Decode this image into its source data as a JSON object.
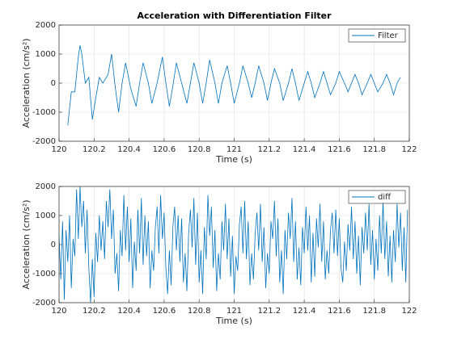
{
  "chart_data": [
    {
      "type": "line",
      "title": "Acceleration with Differentiation Filter",
      "xlabel": "Time (s)",
      "ylabel": "Acceleration (cm/s²)",
      "x": [
        120.05,
        120.07,
        120.09,
        120.11,
        120.12,
        120.13,
        120.15,
        120.17,
        120.19,
        120.21,
        120.23,
        120.25,
        120.28,
        120.3,
        120.32,
        120.34,
        120.36,
        120.38,
        120.41,
        120.44,
        120.46,
        120.48,
        120.51,
        120.53,
        120.56,
        120.59,
        120.61,
        120.63,
        120.65,
        120.67,
        120.7,
        120.73,
        120.75,
        120.77,
        120.8,
        120.82,
        120.84,
        120.86,
        120.89,
        120.91,
        120.93,
        120.96,
        120.98,
        121.0,
        121.03,
        121.05,
        121.08,
        121.1,
        121.12,
        121.14,
        121.17,
        121.19,
        121.21,
        121.23,
        121.26,
        121.28,
        121.31,
        121.33,
        121.35,
        121.37,
        121.4,
        121.42,
        121.44,
        121.46,
        121.49,
        121.51,
        121.53,
        121.55,
        121.58,
        121.6,
        121.63,
        121.65,
        121.67,
        121.69,
        121.71,
        121.73,
        121.76,
        121.78,
        121.8,
        121.82,
        121.85,
        121.87,
        121.89,
        121.91,
        121.93,
        121.95
      ],
      "series": [
        {
          "name": "Filter",
          "color": "#0072BD",
          "values": [
            -1450,
            -300,
            -300,
            900,
            1300,
            1000,
            0,
            200,
            -1250,
            -500,
            200,
            0,
            300,
            1000,
            -100,
            -1000,
            0,
            700,
            -200,
            -800,
            0,
            700,
            0,
            -700,
            0,
            900,
            0,
            -800,
            -100,
            700,
            0,
            -700,
            0,
            700,
            0,
            -700,
            0,
            800,
            0,
            -700,
            0,
            600,
            0,
            -700,
            0,
            600,
            0,
            -500,
            0,
            600,
            0,
            -600,
            0,
            500,
            0,
            -600,
            0,
            500,
            0,
            -600,
            0,
            400,
            0,
            -500,
            0,
            400,
            0,
            -400,
            0,
            400,
            0,
            -300,
            0,
            300,
            0,
            -400,
            0,
            300,
            0,
            -300,
            0,
            300,
            0,
            -400,
            0,
            200
          ]
        }
      ],
      "xlim": [
        120,
        122
      ],
      "xticks": [
        120,
        120.2,
        120.4,
        120.6,
        120.8,
        121,
        121.2,
        121.4,
        121.6,
        121.8,
        122
      ],
      "ylim": [
        -2000,
        2000
      ],
      "yticks": [
        -2000,
        -1000,
        0,
        1000,
        2000
      ],
      "grid": true,
      "legend": "top-right"
    },
    {
      "type": "line",
      "xlabel": "Time (s)",
      "ylabel": "Acceleration (cm/s²)",
      "x": [
        120.0,
        120.01,
        120.02,
        120.03,
        120.04,
        120.05,
        120.06,
        120.07,
        120.08,
        120.09,
        120.1,
        120.11,
        120.12,
        120.13,
        120.14,
        120.15,
        120.16,
        120.17,
        120.18,
        120.19,
        120.2,
        120.21,
        120.22,
        120.23,
        120.24,
        120.25,
        120.26,
        120.27,
        120.28,
        120.29,
        120.3,
        120.31,
        120.32,
        120.33,
        120.34,
        120.35,
        120.36,
        120.37,
        120.38,
        120.39,
        120.4,
        120.41,
        120.42,
        120.43,
        120.44,
        120.45,
        120.46,
        120.47,
        120.48,
        120.49,
        120.5,
        120.51,
        120.52,
        120.53,
        120.54,
        120.55,
        120.56,
        120.57,
        120.58,
        120.59,
        120.6,
        120.61,
        120.62,
        120.63,
        120.64,
        120.65,
        120.66,
        120.67,
        120.68,
        120.69,
        120.7,
        120.71,
        120.72,
        120.73,
        120.74,
        120.75,
        120.76,
        120.77,
        120.78,
        120.79,
        120.8,
        120.81,
        120.82,
        120.83,
        120.84,
        120.85,
        120.86,
        120.87,
        120.88,
        120.89,
        120.9,
        120.91,
        120.92,
        120.93,
        120.94,
        120.95,
        120.96,
        120.97,
        120.98,
        120.99,
        121.0,
        121.01,
        121.02,
        121.03,
        121.04,
        121.05,
        121.06,
        121.07,
        121.08,
        121.09,
        121.1,
        121.11,
        121.12,
        121.13,
        121.14,
        121.15,
        121.16,
        121.17,
        121.18,
        121.19,
        121.2,
        121.21,
        121.22,
        121.23,
        121.24,
        121.25,
        121.26,
        121.27,
        121.28,
        121.29,
        121.3,
        121.31,
        121.32,
        121.33,
        121.34,
        121.35,
        121.36,
        121.37,
        121.38,
        121.39,
        121.4,
        121.41,
        121.42,
        121.43,
        121.44,
        121.45,
        121.46,
        121.47,
        121.48,
        121.49,
        121.5,
        121.51,
        121.52,
        121.53,
        121.54,
        121.55,
        121.56,
        121.57,
        121.58,
        121.59,
        121.6,
        121.61,
        121.62,
        121.63,
        121.64,
        121.65,
        121.66,
        121.67,
        121.68,
        121.69,
        121.7,
        121.71,
        121.72,
        121.73,
        121.74,
        121.75,
        121.76,
        121.77,
        121.78,
        121.79,
        121.8,
        121.81,
        121.82,
        121.83,
        121.84,
        121.85,
        121.86,
        121.87,
        121.88,
        121.89,
        121.9,
        121.91,
        121.92,
        121.93,
        121.94,
        121.95,
        121.96,
        121.97,
        121.98,
        121.99
      ],
      "series": [
        {
          "name": "diff",
          "color": "#0072BD",
          "values": [
            300,
            -1200,
            800,
            -1900,
            500,
            -600,
            1000,
            -1500,
            200,
            -400,
            1900,
            200,
            2000,
            600,
            1500,
            -300,
            1200,
            -800,
            -2000,
            -500,
            -1800,
            400,
            -600,
            1000,
            -200,
            800,
            -500,
            1500,
            600,
            1900,
            200,
            1200,
            -1000,
            -300,
            -1600,
            500,
            -400,
            1700,
            -200,
            1300,
            -600,
            900,
            -1500,
            100,
            -900,
            1200,
            -300,
            1600,
            -700,
            1000,
            -400,
            800,
            -1500,
            -200,
            -900,
            600,
            1300,
            -300,
            1700,
            200,
            1100,
            -800,
            -1700,
            -200,
            -1400,
            600,
            1300,
            -200,
            1000,
            -600,
            900,
            -1300,
            -300,
            -1600,
            400,
            1200,
            -100,
            1600,
            -700,
            1100,
            -1300,
            -200,
            -1700,
            600,
            -500,
            1700,
            300,
            1300,
            -800,
            500,
            -1600,
            -300,
            -1200,
            800,
            -200,
            1400,
            -500,
            900,
            -1100,
            300,
            -1700,
            -400,
            -900,
            700,
            1300,
            -300,
            1500,
            -500,
            800,
            -1400,
            -300,
            -1200,
            400,
            1100,
            -200,
            1400,
            -600,
            600,
            -1500,
            -300,
            -1000,
            800,
            200,
            1500,
            -400,
            900,
            -1300,
            -200,
            -1700,
            500,
            -500,
            1100,
            200,
            1600,
            -600,
            800,
            -1200,
            -100,
            -1400,
            600,
            -300,
            1300,
            -200,
            1000,
            -1300,
            400,
            -1100,
            900,
            -100,
            1400,
            -600,
            800,
            -1200,
            -200,
            -1000,
            500,
            1100,
            -300,
            1200,
            -400,
            900,
            -800,
            -1300,
            100,
            -900,
            700,
            -200,
            1300,
            -500,
            800,
            -1000,
            300,
            -1400,
            600,
            -300,
            1100,
            -200,
            1400,
            -700,
            500,
            -1200,
            200,
            -900,
            1000,
            -300,
            1500,
            -500,
            800,
            -1100,
            300,
            -1300,
            500,
            -600,
            1400,
            -100,
            1100,
            -900,
            600,
            -1300,
            1200
          ]
        }
      ],
      "xlim": [
        120,
        122
      ],
      "xticks": [
        120,
        120.2,
        120.4,
        120.6,
        120.8,
        121,
        121.2,
        121.4,
        121.6,
        121.8,
        122
      ],
      "ylim": [
        -2000,
        2000
      ],
      "yticks": [
        -2000,
        -1000,
        0,
        1000,
        2000
      ],
      "grid": true,
      "legend": "top-right"
    }
  ]
}
